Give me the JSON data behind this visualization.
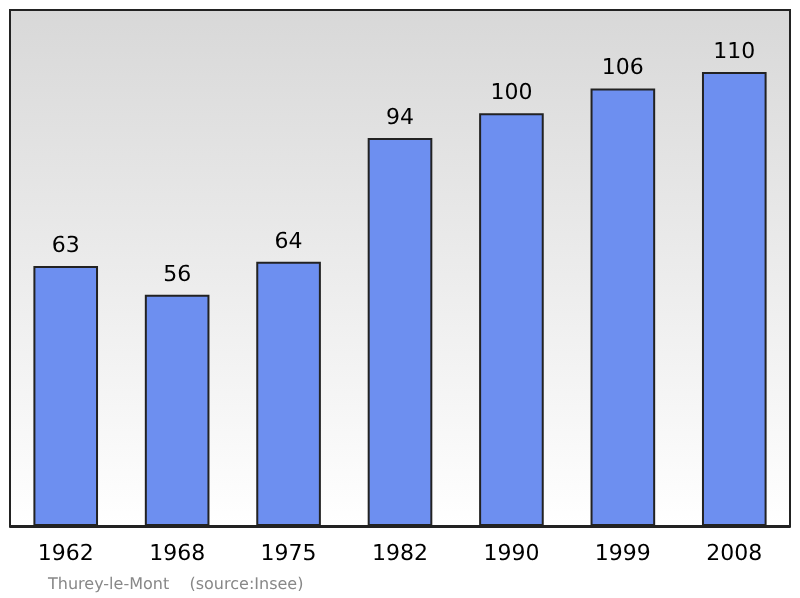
{
  "chart_data": {
    "type": "bar",
    "categories": [
      "1962",
      "1968",
      "1975",
      "1982",
      "1990",
      "1999",
      "2008"
    ],
    "values": [
      63,
      56,
      64,
      94,
      100,
      106,
      110
    ],
    "color": "#6d8ff0",
    "ylim": [
      0,
      125
    ],
    "data_labels": true,
    "annotations": [
      "Thurey-le-Mont    (source:Insee)"
    ]
  }
}
